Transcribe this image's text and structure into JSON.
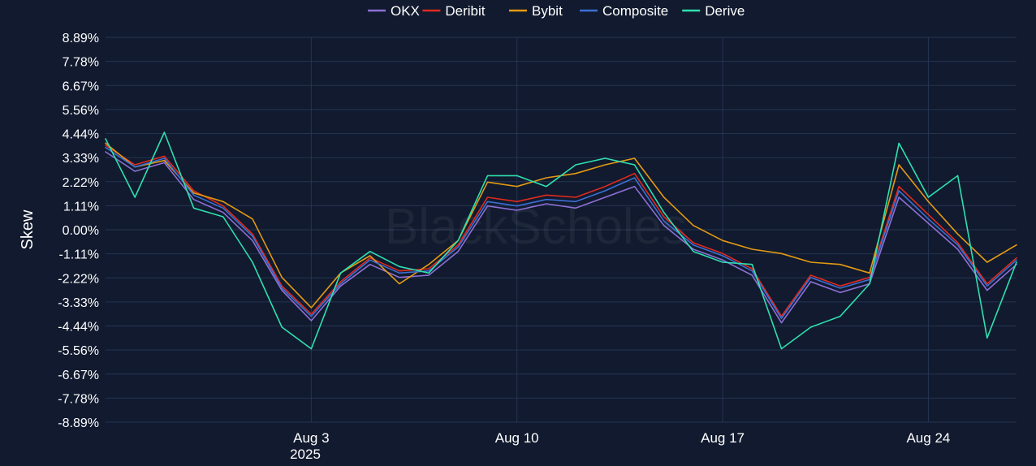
{
  "chart_data": {
    "type": "line",
    "title": "",
    "xlabel": "",
    "ylabel": "Skew",
    "x_ticks": [
      "Aug 3",
      "Aug 10",
      "Aug 17",
      "Aug 24"
    ],
    "x_year_label": "2025",
    "x_tick_dates": [
      "2025-08-03",
      "2025-08-10",
      "2025-08-17",
      "2025-08-24"
    ],
    "xlim": [
      "2025-07-27",
      "2025-08-27"
    ],
    "y_ticks": [
      "8.89%",
      "7.78%",
      "6.67%",
      "5.56%",
      "4.44%",
      "3.33%",
      "2.22%",
      "1.11%",
      "0.00%",
      "-1.11%",
      "-2.22%",
      "-3.33%",
      "-4.44%",
      "-5.56%",
      "-6.67%",
      "-7.78%",
      "-8.89%"
    ],
    "ylim": [
      -8.89,
      8.89
    ],
    "grid": true,
    "legend": "top-center",
    "watermark": "BlackScholes",
    "series": [
      {
        "name": "OKX",
        "color": "#8e6fd6",
        "x": [
          "2025-07-27",
          "2025-07-28",
          "2025-07-29",
          "2025-07-30",
          "2025-07-31",
          "2025-08-01",
          "2025-08-02",
          "2025-08-03",
          "2025-08-04",
          "2025-08-05",
          "2025-08-06",
          "2025-08-07",
          "2025-08-08",
          "2025-08-09",
          "2025-08-10",
          "2025-08-11",
          "2025-08-12",
          "2025-08-13",
          "2025-08-14",
          "2025-08-15",
          "2025-08-16",
          "2025-08-17",
          "2025-08-18",
          "2025-08-19",
          "2025-08-20",
          "2025-08-21",
          "2025-08-22",
          "2025-08-23",
          "2025-08-24",
          "2025-08-25",
          "2025-08-26",
          "2025-08-27"
        ],
        "values": [
          3.6,
          2.7,
          3.1,
          1.4,
          0.8,
          -0.5,
          -2.8,
          -4.2,
          -2.6,
          -1.6,
          -2.2,
          -2.1,
          -1.0,
          1.1,
          0.9,
          1.2,
          1.0,
          1.5,
          2.0,
          0.2,
          -0.9,
          -1.4,
          -2.1,
          -4.3,
          -2.4,
          -2.9,
          -2.5,
          1.5,
          0.3,
          -0.9,
          -2.8,
          -1.6
        ]
      },
      {
        "name": "Deribit",
        "color": "#e02a1f",
        "x": [
          "2025-07-27",
          "2025-07-28",
          "2025-07-29",
          "2025-07-30",
          "2025-07-31",
          "2025-08-01",
          "2025-08-02",
          "2025-08-03",
          "2025-08-04",
          "2025-08-05",
          "2025-08-06",
          "2025-08-07",
          "2025-08-08",
          "2025-08-09",
          "2025-08-10",
          "2025-08-11",
          "2025-08-12",
          "2025-08-13",
          "2025-08-14",
          "2025-08-15",
          "2025-08-16",
          "2025-08-17",
          "2025-08-18",
          "2025-08-19",
          "2025-08-20",
          "2025-08-21",
          "2025-08-22",
          "2025-08-23",
          "2025-08-24",
          "2025-08-25",
          "2025-08-26",
          "2025-08-27"
        ],
        "values": [
          3.9,
          3.0,
          3.4,
          1.8,
          1.1,
          -0.2,
          -2.6,
          -3.9,
          -2.4,
          -1.3,
          -1.9,
          -1.8,
          -0.7,
          1.5,
          1.3,
          1.6,
          1.5,
          2.0,
          2.6,
          0.6,
          -0.6,
          -1.1,
          -1.8,
          -4.0,
          -2.1,
          -2.6,
          -2.2,
          2.0,
          0.7,
          -0.6,
          -2.5,
          -1.3
        ]
      },
      {
        "name": "Bybit",
        "color": "#e39a13",
        "x": [
          "2025-07-27",
          "2025-07-28",
          "2025-07-29",
          "2025-07-30",
          "2025-07-31",
          "2025-08-01",
          "2025-08-02",
          "2025-08-03",
          "2025-08-04",
          "2025-08-05",
          "2025-08-06",
          "2025-08-07",
          "2025-08-08",
          "2025-08-09",
          "2025-08-10",
          "2025-08-11",
          "2025-08-12",
          "2025-08-13",
          "2025-08-14",
          "2025-08-15",
          "2025-08-16",
          "2025-08-17",
          "2025-08-18",
          "2025-08-19",
          "2025-08-20",
          "2025-08-21",
          "2025-08-22",
          "2025-08-23",
          "2025-08-24",
          "2025-08-25",
          "2025-08-26",
          "2025-08-27"
        ],
        "values": [
          4.0,
          2.9,
          3.2,
          1.7,
          1.3,
          0.5,
          -2.2,
          -3.6,
          -2.0,
          -1.2,
          -2.5,
          -1.6,
          -0.5,
          2.2,
          2.0,
          2.4,
          2.6,
          3.0,
          3.3,
          1.5,
          0.2,
          -0.5,
          -0.9,
          -1.1,
          -1.5,
          -1.6,
          -2.0,
          3.0,
          1.3,
          -0.2,
          -1.5,
          -0.7
        ]
      },
      {
        "name": "Composite",
        "color": "#3b6fd4",
        "x": [
          "2025-07-27",
          "2025-07-28",
          "2025-07-29",
          "2025-07-30",
          "2025-07-31",
          "2025-08-01",
          "2025-08-02",
          "2025-08-03",
          "2025-08-04",
          "2025-08-05",
          "2025-08-06",
          "2025-08-07",
          "2025-08-08",
          "2025-08-09",
          "2025-08-10",
          "2025-08-11",
          "2025-08-12",
          "2025-08-13",
          "2025-08-14",
          "2025-08-15",
          "2025-08-16",
          "2025-08-17",
          "2025-08-18",
          "2025-08-19",
          "2025-08-20",
          "2025-08-21",
          "2025-08-22",
          "2025-08-23",
          "2025-08-24",
          "2025-08-25",
          "2025-08-26",
          "2025-08-27"
        ],
        "values": [
          3.8,
          2.9,
          3.3,
          1.6,
          1.0,
          -0.3,
          -2.7,
          -4.0,
          -2.5,
          -1.4,
          -2.0,
          -1.9,
          -0.8,
          1.3,
          1.1,
          1.4,
          1.3,
          1.8,
          2.4,
          0.4,
          -0.7,
          -1.2,
          -1.9,
          -4.1,
          -2.2,
          -2.7,
          -2.3,
          1.8,
          0.5,
          -0.7,
          -2.6,
          -1.4
        ]
      },
      {
        "name": "Derive",
        "color": "#2ee0b0",
        "x": [
          "2025-07-27",
          "2025-07-28",
          "2025-07-29",
          "2025-07-30",
          "2025-07-31",
          "2025-08-01",
          "2025-08-02",
          "2025-08-03",
          "2025-08-04",
          "2025-08-05",
          "2025-08-06",
          "2025-08-07",
          "2025-08-08",
          "2025-08-09",
          "2025-08-10",
          "2025-08-11",
          "2025-08-12",
          "2025-08-13",
          "2025-08-14",
          "2025-08-15",
          "2025-08-16",
          "2025-08-17",
          "2025-08-18",
          "2025-08-19",
          "2025-08-20",
          "2025-08-21",
          "2025-08-22",
          "2025-08-23",
          "2025-08-24",
          "2025-08-25",
          "2025-08-26",
          "2025-08-27"
        ],
        "values": [
          4.2,
          1.5,
          4.5,
          1.0,
          0.6,
          -1.5,
          -4.5,
          -5.5,
          -2.0,
          -1.0,
          -1.7,
          -2.0,
          -0.5,
          2.5,
          2.5,
          2.0,
          3.0,
          3.3,
          3.0,
          0.8,
          -1.0,
          -1.5,
          -1.6,
          -5.5,
          -4.5,
          -4.0,
          -2.5,
          4.0,
          1.5,
          2.5,
          -5.0,
          -1.5
        ]
      }
    ]
  }
}
